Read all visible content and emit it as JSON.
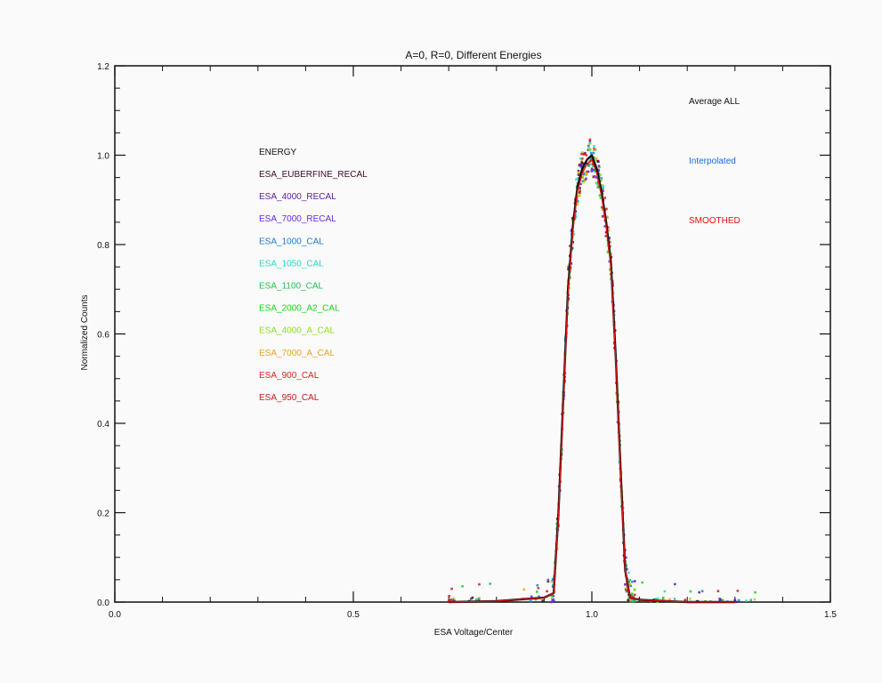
{
  "chart_data": {
    "type": "line",
    "title": "A=0, R=0, Different Energies",
    "xlabel": "ESA Voltage/Center",
    "ylabel": "Normalized Counts",
    "xlim": [
      0.0,
      1.5
    ],
    "ylim": [
      0.0,
      1.2
    ],
    "x_ticks": [
      "0.0",
      "0.5",
      "1.0",
      "1.5"
    ],
    "y_ticks": [
      "0.0",
      "0.2",
      "0.4",
      "0.6",
      "0.8",
      "1.0",
      "1.2"
    ],
    "grid": false,
    "legend_title": "ENERGY",
    "energy_legend": [
      {
        "name": "ESA_EUBERFINE_RECAL",
        "color": "#3a0a2a"
      },
      {
        "name": "ESA_4000_RECAL",
        "color": "#5a1aa0"
      },
      {
        "name": "ESA_7000_RECAL",
        "color": "#6a28e0"
      },
      {
        "name": "ESA_1000_CAL",
        "color": "#1a7ad0"
      },
      {
        "name": "ESA_1050_CAL",
        "color": "#28d8c8"
      },
      {
        "name": "ESA_1100_CAL",
        "color": "#22c050"
      },
      {
        "name": "ESA_2000_A2_CAL",
        "color": "#16d616"
      },
      {
        "name": "ESA_4000_A_CAL",
        "color": "#8ee020"
      },
      {
        "name": "ESA_7000_A_CAL",
        "color": "#f0a020"
      },
      {
        "name": "ESA_900_CAL",
        "color": "#e02020"
      },
      {
        "name": "ESA_950_CAL",
        "color": "#c81818"
      }
    ],
    "curve_legend": [
      {
        "name": "Average ALL",
        "color": "#111111"
      },
      {
        "name": "Interpolated",
        "color": "#1a6ad8"
      },
      {
        "name": "SMOOTHED",
        "color": "#e01010"
      }
    ],
    "series": [
      {
        "name": "Average ALL",
        "color": "#111111",
        "x": [
          0.7,
          0.8,
          0.9,
          0.92,
          0.93,
          0.94,
          0.95,
          0.96,
          0.97,
          0.98,
          0.99,
          1.0,
          1.01,
          1.02,
          1.03,
          1.04,
          1.05,
          1.06,
          1.07,
          1.08,
          1.1,
          1.2,
          1.3
        ],
        "values": [
          0.0,
          0.002,
          0.01,
          0.02,
          0.2,
          0.45,
          0.7,
          0.84,
          0.93,
          0.97,
          0.99,
          1.0,
          0.97,
          0.92,
          0.85,
          0.76,
          0.55,
          0.3,
          0.07,
          0.01,
          0.005,
          0.0,
          0.0
        ]
      },
      {
        "name": "SMOOTHED",
        "color": "#e01010",
        "x": [
          0.7,
          0.8,
          0.9,
          0.92,
          0.93,
          0.94,
          0.95,
          0.96,
          0.97,
          0.98,
          0.99,
          1.0,
          1.01,
          1.02,
          1.03,
          1.04,
          1.05,
          1.06,
          1.07,
          1.08,
          1.1,
          1.2,
          1.3
        ],
        "values": [
          0.0,
          0.002,
          0.01,
          0.02,
          0.19,
          0.44,
          0.69,
          0.83,
          0.92,
          0.96,
          0.98,
          0.99,
          0.96,
          0.91,
          0.84,
          0.75,
          0.54,
          0.29,
          0.07,
          0.01,
          0.005,
          0.0,
          0.0
        ]
      }
    ]
  }
}
